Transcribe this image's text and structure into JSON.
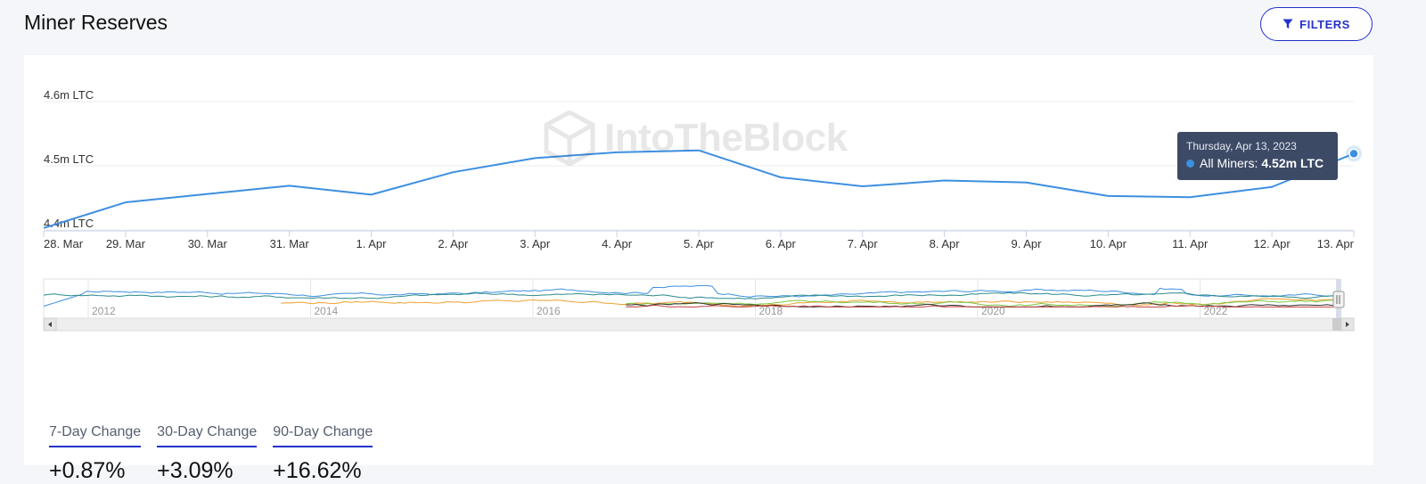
{
  "header": {
    "title": "Miner Reserves",
    "filters_label": "FILTERS"
  },
  "watermark": {
    "text": "IntoTheBlock"
  },
  "chart_data": {
    "type": "line",
    "y_unit": "LTC",
    "yticks": [
      "4.4m LTC",
      "4.5m LTC",
      "4.6m LTC"
    ],
    "ylim": [
      4.4,
      4.6
    ],
    "x": [
      "28. Mar",
      "29. Mar",
      "30. Mar",
      "31. Mar",
      "1. Apr",
      "2. Apr",
      "3. Apr",
      "4. Apr",
      "5. Apr",
      "6. Apr",
      "7. Apr",
      "8. Apr",
      "9. Apr",
      "10. Apr",
      "11. Apr",
      "12. Apr",
      "13. Apr"
    ],
    "series": [
      {
        "name": "All Miners",
        "color": "#3d8fe0",
        "values": [
          4.403,
          4.443,
          4.456,
          4.469,
          4.455,
          4.49,
          4.512,
          4.521,
          4.524,
          4.482,
          4.468,
          4.477,
          4.474,
          4.453,
          4.451,
          4.467,
          4.519
        ]
      }
    ],
    "tooltip": {
      "date": "Thursday, Apr 13, 2023",
      "series_label": "All Miners:",
      "value": "4.52m LTC"
    },
    "navigator": {
      "year_labels": [
        "2012",
        "2014",
        "2016",
        "2018",
        "2020",
        "2022"
      ],
      "series_colors": [
        "#3d8fe0",
        "#2a8a8a",
        "#f0a030",
        "#7ac943",
        "#333333",
        "#c04040"
      ]
    },
    "grid": true,
    "legend": "none"
  },
  "stats": [
    {
      "label": "7-Day Change",
      "value": "+0.87%"
    },
    {
      "label": "30-Day Change",
      "value": "+3.09%"
    },
    {
      "label": "90-Day Change",
      "value": "+16.62%"
    }
  ]
}
